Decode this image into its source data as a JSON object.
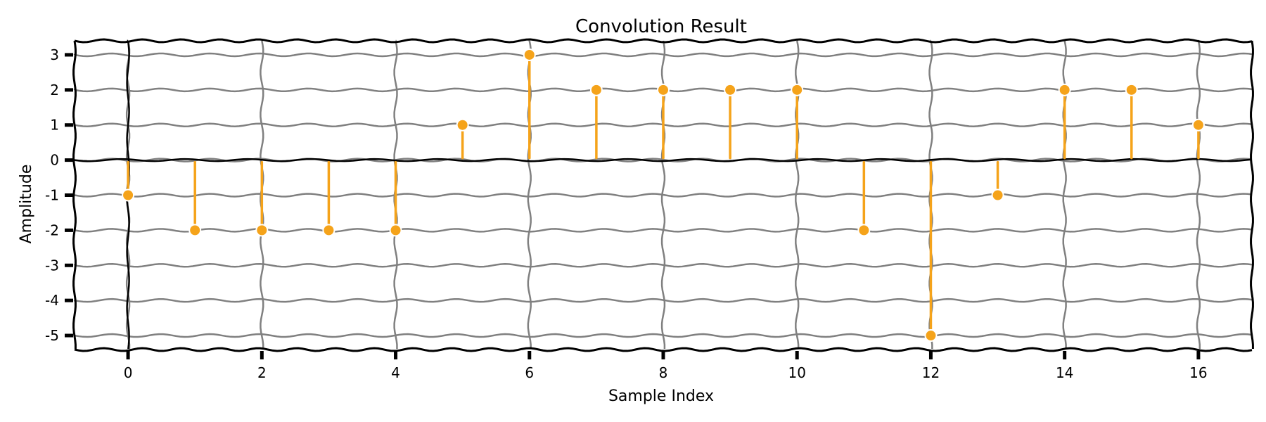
{
  "chart_data": {
    "type": "stem",
    "title": "Convolution Result",
    "xlabel": "Sample Index",
    "ylabel": "Amplitude",
    "x": [
      0,
      1,
      2,
      3,
      4,
      5,
      6,
      7,
      8,
      9,
      10,
      11,
      12,
      13,
      14,
      15,
      16
    ],
    "values": [
      -1,
      -2,
      -2,
      -2,
      -2,
      1,
      3,
      2,
      2,
      2,
      2,
      -2,
      -5,
      -1,
      2,
      2,
      1
    ],
    "xlim": [
      -0.8,
      16.8
    ],
    "ylim": [
      -5.4,
      3.4
    ],
    "xticks": [
      0,
      2,
      4,
      6,
      8,
      10,
      12,
      14,
      16
    ],
    "yticks": [
      -5,
      -4,
      -3,
      -2,
      -1,
      0,
      1,
      2,
      3
    ],
    "grid": true,
    "legend": "none",
    "stem_color": "#f5a31a",
    "grid_color": "#808080"
  }
}
